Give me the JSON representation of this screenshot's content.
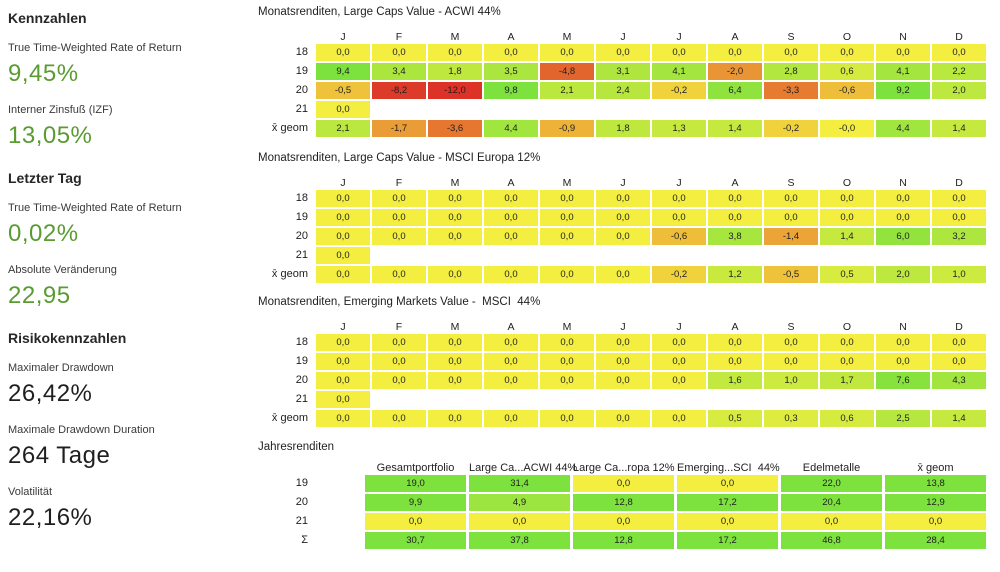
{
  "sidebar": {
    "sections": [
      {
        "heading": "Kennzahlen",
        "items": [
          {
            "label": "True Time-Weighted Rate of Return",
            "value": "9,45%",
            "color": "green"
          },
          {
            "label": "Interner Zinsfuß (IZF)",
            "value": "13,05%",
            "color": "green"
          }
        ]
      },
      {
        "heading": "Letzter Tag",
        "items": [
          {
            "label": "True Time-Weighted Rate of Return",
            "value": "0,02%",
            "color": "green"
          },
          {
            "label": "Absolute Veränderung",
            "value": "22,95",
            "color": "green"
          }
        ]
      },
      {
        "heading": "Risikokennzahlen",
        "items": [
          {
            "label": "Maximaler Drawdown",
            "value": "26,42%",
            "color": "dark"
          },
          {
            "label": "Maximale Drawdown Duration",
            "value": "264 Tage",
            "color": "dark"
          },
          {
            "label": "Volatilität",
            "value": "22,16%",
            "color": "dark"
          }
        ]
      }
    ]
  },
  "heatmap_palette": {
    "zero_yellow": "#F4EE40",
    "positive_green": "#7DE13E",
    "negative_red": "#DC3228",
    "scale_max": 9,
    "sidebar_green": "#5A9B32",
    "text_dark": "#1F1F1F"
  },
  "chart_data": [
    {
      "type": "heatmap",
      "title": "Monatsrenditen, Large Caps Value - ACWI 44%",
      "columns": [
        "J",
        "F",
        "M",
        "A",
        "M",
        "J",
        "J",
        "A",
        "S",
        "O",
        "N",
        "D"
      ],
      "rows": [
        {
          "label": "18",
          "values": [
            "0,0",
            "0,0",
            "0,0",
            "0,0",
            "0,0",
            "0,0",
            "0,0",
            "0,0",
            "0,0",
            "0,0",
            "0,0",
            "0,0"
          ]
        },
        {
          "label": "19",
          "values": [
            "9,4",
            "3,4",
            "1,8",
            "3,5",
            "-4,8",
            "3,1",
            "4,1",
            "-2,0",
            "2,8",
            "0,6",
            "4,1",
            "2,2"
          ]
        },
        {
          "label": "20",
          "values": [
            "-0,5",
            "-8,2",
            "-12,0",
            "9,8",
            "2,1",
            "2,4",
            "-0,2",
            "6,4",
            "-3,3",
            "-0,6",
            "9,2",
            "2,0"
          ]
        },
        {
          "label": "21",
          "values": [
            "0,0",
            null,
            null,
            null,
            null,
            null,
            null,
            null,
            null,
            null,
            null,
            null
          ]
        },
        {
          "label": "x̄ geom",
          "values": [
            "2,1",
            "-1,7",
            "-3,6",
            "4,4",
            "-0,9",
            "1,8",
            "1,3",
            "1,4",
            "-0,2",
            "-0,0",
            "4,4",
            "1,4"
          ]
        }
      ]
    },
    {
      "type": "heatmap",
      "title": "Monatsrenditen, Large Caps Value - MSCI Europa 12%",
      "columns": [
        "J",
        "F",
        "M",
        "A",
        "M",
        "J",
        "J",
        "A",
        "S",
        "O",
        "N",
        "D"
      ],
      "rows": [
        {
          "label": "18",
          "values": [
            "0,0",
            "0,0",
            "0,0",
            "0,0",
            "0,0",
            "0,0",
            "0,0",
            "0,0",
            "0,0",
            "0,0",
            "0,0",
            "0,0"
          ]
        },
        {
          "label": "19",
          "values": [
            "0,0",
            "0,0",
            "0,0",
            "0,0",
            "0,0",
            "0,0",
            "0,0",
            "0,0",
            "0,0",
            "0,0",
            "0,0",
            "0,0"
          ]
        },
        {
          "label": "20",
          "values": [
            "0,0",
            "0,0",
            "0,0",
            "0,0",
            "0,0",
            "0,0",
            "-0,6",
            "3,8",
            "-1,4",
            "1,4",
            "6,0",
            "3,2"
          ]
        },
        {
          "label": "21",
          "values": [
            "0,0",
            null,
            null,
            null,
            null,
            null,
            null,
            null,
            null,
            null,
            null,
            null
          ]
        },
        {
          "label": "x̄ geom",
          "values": [
            "0,0",
            "0,0",
            "0,0",
            "0,0",
            "0,0",
            "0,0",
            "-0,2",
            "1,2",
            "-0,5",
            "0,5",
            "2,0",
            "1,0"
          ]
        }
      ]
    },
    {
      "type": "heatmap",
      "title": "Monatsrenditen, Emerging Markets Value -  MSCI  44%",
      "columns": [
        "J",
        "F",
        "M",
        "A",
        "M",
        "J",
        "J",
        "A",
        "S",
        "O",
        "N",
        "D"
      ],
      "rows": [
        {
          "label": "18",
          "values": [
            "0,0",
            "0,0",
            "0,0",
            "0,0",
            "0,0",
            "0,0",
            "0,0",
            "0,0",
            "0,0",
            "0,0",
            "0,0",
            "0,0"
          ]
        },
        {
          "label": "19",
          "values": [
            "0,0",
            "0,0",
            "0,0",
            "0,0",
            "0,0",
            "0,0",
            "0,0",
            "0,0",
            "0,0",
            "0,0",
            "0,0",
            "0,0"
          ]
        },
        {
          "label": "20",
          "values": [
            "0,0",
            "0,0",
            "0,0",
            "0,0",
            "0,0",
            "0,0",
            "0,0",
            "1,6",
            "1,0",
            "1,7",
            "7,6",
            "4,3"
          ]
        },
        {
          "label": "21",
          "values": [
            "0,0",
            null,
            null,
            null,
            null,
            null,
            null,
            null,
            null,
            null,
            null,
            null
          ]
        },
        {
          "label": "x̄ geom",
          "values": [
            "0,0",
            "0,0",
            "0,0",
            "0,0",
            "0,0",
            "0,0",
            "0,0",
            "0,5",
            "0,3",
            "0,6",
            "2,5",
            "1,4"
          ]
        }
      ]
    },
    {
      "type": "table",
      "title": "Jahresrenditen",
      "columns": [
        "Gesamtportfolio",
        "Large Ca...ACWI 44%",
        "Large Ca...ropa 12%",
        "Emerging...SCI  44%",
        "Edelmetalle",
        "x̄ geom"
      ],
      "rows": [
        {
          "label": "19",
          "values": [
            "19,0",
            "31,4",
            "0,0",
            "0,0",
            "22,0",
            "13,8"
          ]
        },
        {
          "label": "20",
          "values": [
            "9,9",
            "4,9",
            "12,8",
            "17,2",
            "20,4",
            "12,9"
          ]
        },
        {
          "label": "21",
          "values": [
            "0,0",
            "0,0",
            "0,0",
            "0,0",
            "0,0",
            "0,0"
          ]
        },
        {
          "label": "Σ",
          "values": [
            "30,7",
            "37,8",
            "12,8",
            "17,2",
            "46,8",
            "28,4"
          ]
        }
      ]
    }
  ]
}
